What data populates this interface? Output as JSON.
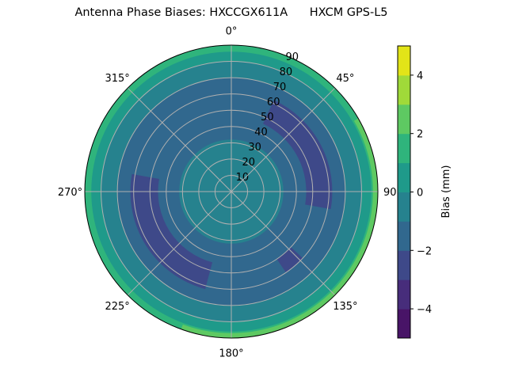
{
  "chart_data": {
    "type": "polar-contour",
    "title": "Antenna Phase Biases: HXCCGX611A      HXCM GPS-L5",
    "angle_ticks": [
      "0°",
      "45°",
      "90°",
      "135°",
      "180°",
      "225°",
      "270°",
      "315°"
    ],
    "radial_ticks": [
      "10",
      "20",
      "30",
      "40",
      "50",
      "60",
      "70",
      "80",
      "90"
    ],
    "radial_range": [
      0,
      90
    ],
    "angle_zero": "top",
    "angle_direction": "clockwise",
    "grid": true,
    "colorbar": {
      "label": "Bias (mm)",
      "levels": [
        -5,
        -4,
        -3,
        -2,
        -1,
        0,
        1,
        2,
        3,
        4,
        5
      ],
      "ticks": [
        "−4",
        "−2",
        "0",
        "2",
        "4"
      ],
      "tick_values": [
        -4,
        -2,
        0,
        2,
        4
      ],
      "colormap": "viridis",
      "colors": [
        "#481467",
        "#472d7b",
        "#3e4989",
        "#31688e",
        "#26828e",
        "#1f9a8a",
        "#2fb47c",
        "#5ec962",
        "#a0da39",
        "#e2e418"
      ]
    },
    "bands": [
      {
        "zenith": [
          86,
          90
        ],
        "bias": 1.5
      },
      {
        "zenith": [
          80,
          86
        ],
        "bias": 0.5
      },
      {
        "zenith": [
          70,
          80
        ],
        "bias": -0.5
      },
      {
        "zenith": [
          0,
          70
        ],
        "bias": -1.5
      },
      {
        "zenith": [
          0,
          32
        ],
        "bias": -0.5
      }
    ],
    "regions": [
      {
        "azimuth": [
          60,
          200
        ],
        "zenith": [
          87,
          90
        ],
        "bias": 2.5
      },
      {
        "azimuth": [
          25,
          100
        ],
        "zenith": [
          46,
          62
        ],
        "bias": -2.5
      },
      {
        "azimuth": [
          195,
          280
        ],
        "zenith": [
          45,
          62
        ],
        "bias": -2.5
      },
      {
        "azimuth": [
          133,
          146
        ],
        "zenith": [
          50,
          60
        ],
        "bias": -2.5
      }
    ]
  }
}
